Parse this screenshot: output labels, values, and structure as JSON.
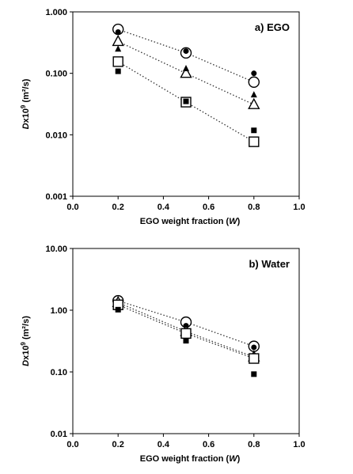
{
  "chart_data": [
    {
      "type": "scatter",
      "panel_label": "a) EGO",
      "xlabel_prefix": "EGO weight fraction (",
      "xlabel_var": "W",
      "xlabel_suffix": ")",
      "ylabel_var": "D",
      "ylabel_mid": "x10",
      "ylabel_exp": "9",
      "ylabel_unit": " (m²/s)",
      "yscale": "log",
      "xlim": [
        0.0,
        1.0
      ],
      "ylim": [
        0.001,
        1.0
      ],
      "xticks": [
        "0.0",
        "0.2",
        "0.4",
        "0.6",
        "0.8",
        "1.0"
      ],
      "yticks": [
        "0.001",
        "0.010",
        "0.100",
        "1.000"
      ],
      "grid": false,
      "series": [
        {
          "marker": "open-circle",
          "fit_line": true,
          "x": [
            0.2,
            0.5,
            0.8
          ],
          "y": [
            0.52,
            0.215,
            0.072
          ]
        },
        {
          "marker": "filled-circle",
          "fit_line": false,
          "x": [
            0.2,
            0.5,
            0.8
          ],
          "y": [
            0.47,
            0.23,
            0.1
          ]
        },
        {
          "marker": "open-triangle",
          "fit_line": true,
          "x": [
            0.2,
            0.5,
            0.8
          ],
          "y": [
            0.33,
            0.1,
            0.031
          ]
        },
        {
          "marker": "filled-triangle",
          "fit_line": false,
          "x": [
            0.2,
            0.5,
            0.8
          ],
          "y": [
            0.25,
            0.12,
            0.045
          ]
        },
        {
          "marker": "open-square",
          "fit_line": true,
          "x": [
            0.2,
            0.5,
            0.8
          ],
          "y": [
            0.155,
            0.034,
            0.0077
          ]
        },
        {
          "marker": "filled-square",
          "fit_line": false,
          "x": [
            0.2,
            0.5,
            0.8
          ],
          "y": [
            0.108,
            0.035,
            0.0118
          ]
        }
      ]
    },
    {
      "type": "scatter",
      "panel_label": "b) Water",
      "xlabel_prefix": "EGO weight fraction (",
      "xlabel_var": "W",
      "xlabel_suffix": ")",
      "ylabel_var": "D",
      "ylabel_mid": "x10",
      "ylabel_exp": "9",
      "ylabel_unit": " (m²/s)",
      "yscale": "log",
      "xlim": [
        0.0,
        1.0
      ],
      "ylim": [
        0.01,
        10.0
      ],
      "xticks": [
        "0.0",
        "0.2",
        "0.4",
        "0.6",
        "0.8",
        "1.0"
      ],
      "yticks": [
        "0.01",
        "0.10",
        "1.00",
        "10.00"
      ],
      "grid": false,
      "series": [
        {
          "marker": "open-circle",
          "fit_line": true,
          "x": [
            0.2,
            0.5,
            0.8
          ],
          "y": [
            1.42,
            0.64,
            0.26
          ]
        },
        {
          "marker": "filled-circle",
          "fit_line": false,
          "x": [
            0.2,
            0.5,
            0.8
          ],
          "y": [
            1.3,
            0.56,
            0.25
          ]
        },
        {
          "marker": "open-triangle",
          "fit_line": true,
          "x": [
            0.2,
            0.5,
            0.8
          ],
          "y": [
            1.33,
            0.45,
            0.175
          ]
        },
        {
          "marker": "filled-triangle",
          "fit_line": false,
          "x": [
            0.2,
            0.5,
            0.8
          ],
          "y": [
            1.15,
            0.4,
            0.18
          ]
        },
        {
          "marker": "open-square",
          "fit_line": true,
          "x": [
            0.2,
            0.5,
            0.8
          ],
          "y": [
            1.22,
            0.42,
            0.165
          ]
        },
        {
          "marker": "filled-square",
          "fit_line": false,
          "x": [
            0.2,
            0.5,
            0.8
          ],
          "y": [
            1.02,
            0.32,
            0.092
          ]
        }
      ]
    }
  ]
}
